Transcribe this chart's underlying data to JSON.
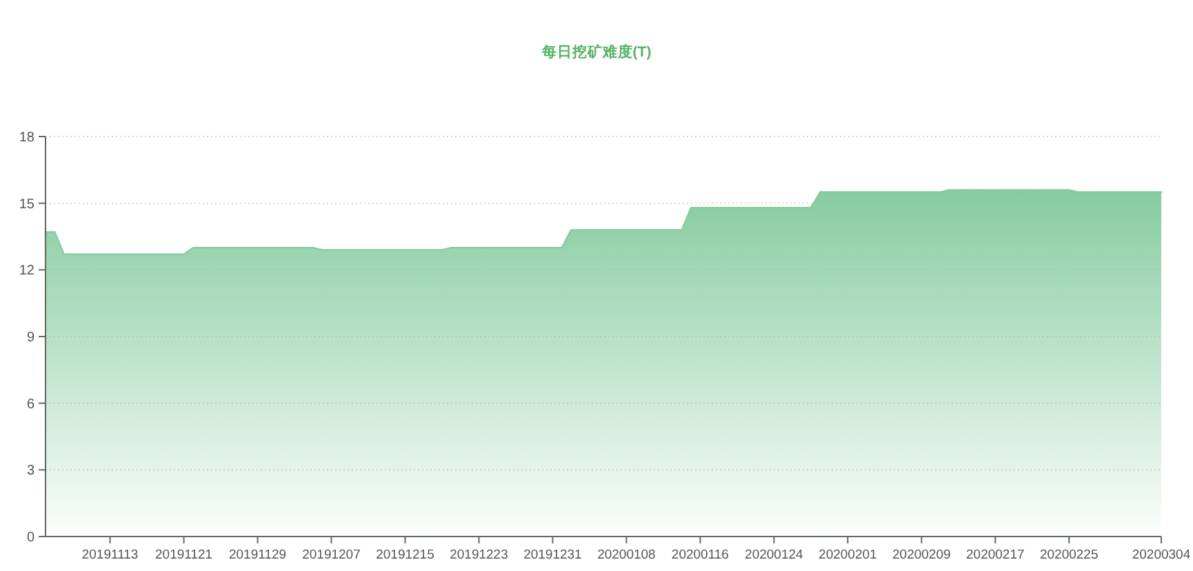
{
  "chart_data": {
    "type": "area",
    "title": "每日挖矿难度(T)",
    "categories": [
      null,
      null,
      null,
      null,
      null,
      null,
      null,
      "20191113",
      null,
      null,
      null,
      null,
      null,
      null,
      null,
      "20191121",
      null,
      null,
      null,
      null,
      null,
      null,
      null,
      "20191129",
      null,
      null,
      null,
      null,
      null,
      null,
      null,
      "20191207",
      null,
      null,
      null,
      null,
      null,
      null,
      null,
      "20191215",
      null,
      null,
      null,
      null,
      null,
      null,
      null,
      "20191223",
      null,
      null,
      null,
      null,
      null,
      null,
      null,
      "20191231",
      null,
      null,
      null,
      null,
      null,
      null,
      null,
      "20200108",
      null,
      null,
      null,
      null,
      null,
      null,
      null,
      "20200116",
      null,
      null,
      null,
      null,
      null,
      null,
      null,
      "20200124",
      null,
      null,
      null,
      null,
      null,
      null,
      null,
      "20200201",
      null,
      null,
      null,
      null,
      null,
      null,
      null,
      "20200209",
      null,
      null,
      null,
      null,
      null,
      null,
      null,
      "20200217",
      null,
      null,
      null,
      null,
      null,
      null,
      null,
      "20200225",
      null,
      null,
      null,
      null,
      null,
      null,
      null,
      null,
      null,
      "20200304"
    ],
    "series": [
      {
        "color": "#86cba0",
        "values": [
          13.7,
          13.7,
          12.7,
          12.7,
          12.7,
          12.7,
          12.7,
          12.7,
          12.7,
          12.7,
          12.7,
          12.7,
          12.7,
          12.7,
          12.7,
          12.7,
          13.0,
          13.0,
          13.0,
          13.0,
          13.0,
          13.0,
          13.0,
          13.0,
          13.0,
          13.0,
          13.0,
          13.0,
          13.0,
          13.0,
          12.9,
          12.9,
          12.9,
          12.9,
          12.9,
          12.9,
          12.9,
          12.9,
          12.9,
          12.9,
          12.9,
          12.9,
          12.9,
          12.9,
          13.0,
          13.0,
          13.0,
          13.0,
          13.0,
          13.0,
          13.0,
          13.0,
          13.0,
          13.0,
          13.0,
          13.0,
          13.0,
          13.8,
          13.8,
          13.8,
          13.8,
          13.8,
          13.8,
          13.8,
          13.8,
          13.8,
          13.8,
          13.8,
          13.8,
          13.8,
          14.8,
          14.8,
          14.8,
          14.8,
          14.8,
          14.8,
          14.8,
          14.8,
          14.8,
          14.8,
          14.8,
          14.8,
          14.8,
          14.8,
          15.5,
          15.5,
          15.5,
          15.5,
          15.5,
          15.5,
          15.5,
          15.5,
          15.5,
          15.5,
          15.5,
          15.5,
          15.5,
          15.5,
          15.6,
          15.6,
          15.6,
          15.6,
          15.6,
          15.6,
          15.6,
          15.6,
          15.6,
          15.6,
          15.6,
          15.6,
          15.6,
          15.6,
          15.5,
          15.5,
          15.5,
          15.5,
          15.5,
          15.5,
          15.5,
          15.5,
          15.5,
          15.5
        ]
      }
    ],
    "ylim": [
      0,
      18
    ],
    "yticks": [
      0,
      3,
      6,
      9,
      12,
      15,
      18
    ],
    "grid": "y"
  }
}
